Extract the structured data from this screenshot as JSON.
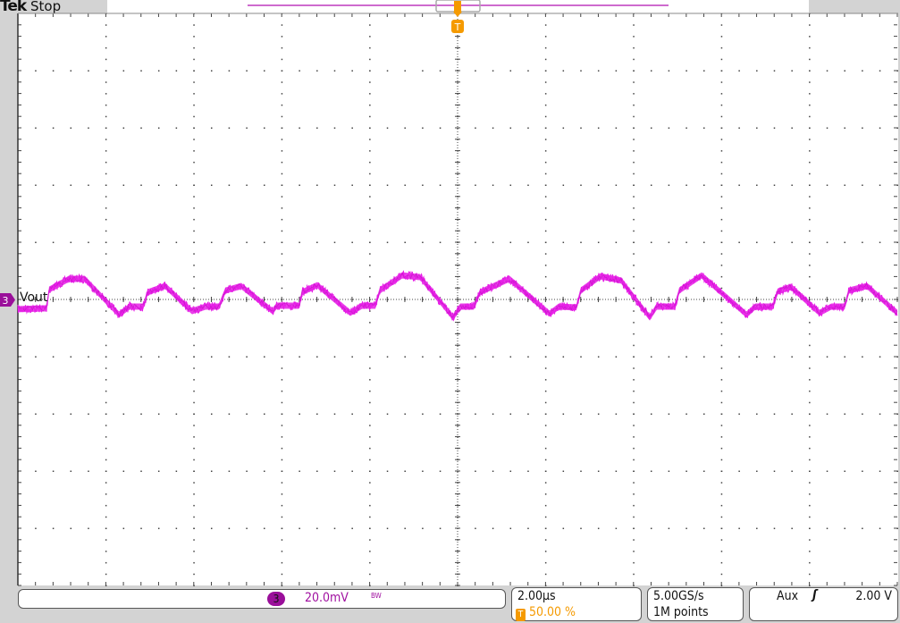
{
  "header": {
    "brand": "Tek",
    "status": "Stop"
  },
  "colors": {
    "trace": "#e61ee6",
    "channel": "#a010a0",
    "trigger": "#f59a00",
    "background": "#d3d3d3",
    "grid": "#555555"
  },
  "channel": {
    "number": "3",
    "label": "Vout",
    "scale": "20.0mV",
    "bandwidth_limit_icon": "BW"
  },
  "timebase": {
    "scale": "2.00µs",
    "trigger_position_icon": "T",
    "trigger_position": "50.00 %"
  },
  "acquisition": {
    "sample_rate": "5.00GS/s",
    "record_length": "1M points"
  },
  "trigger": {
    "source": "Aux",
    "slope_icon": "rising-edge-icon",
    "slope_glyph": "ʃ",
    "level": "2.00 V",
    "marker": "T"
  },
  "chart_data": {
    "type": "line",
    "xlabel": "",
    "ylabel": "",
    "x_unit": "µs",
    "y_unit": "mV",
    "xlim": [
      -10,
      10
    ],
    "ylim": [
      -100,
      100
    ],
    "divisions": {
      "x": 10,
      "y": 10
    },
    "grid": true,
    "series": [
      {
        "x": [
          -10.0,
          -9.35,
          -9.29,
          -8.84,
          -8.48,
          -7.7,
          -7.46,
          -7.15,
          -7.05,
          -6.65,
          -6.04,
          -5.73,
          -5.43,
          -5.28,
          -4.92,
          -4.21,
          -4.11,
          -3.6,
          -3.54,
          -3.19,
          -2.44,
          -2.17,
          -1.87,
          -1.77,
          -1.26,
          -0.85,
          -0.1,
          0.06,
          0.37,
          0.51,
          1.18,
          2.09,
          2.3,
          2.7,
          2.8,
          3.25,
          3.72,
          4.37,
          4.53,
          4.94,
          5.04,
          5.55,
          6.57,
          6.77,
          7.17,
          7.28,
          7.58,
          8.23,
          8.5,
          8.8,
          8.9,
          9.31,
          10.0
        ],
        "y": [
          -3.4,
          -3.1,
          3.4,
          7.2,
          7.2,
          -5.3,
          -2.5,
          -2.5,
          2.5,
          4.7,
          -4.1,
          -2.5,
          -2.5,
          3.1,
          4.7,
          -4.1,
          -2.2,
          -2.2,
          2.5,
          5.0,
          -4.7,
          -2.2,
          -2.2,
          3.1,
          8.4,
          7.8,
          -6.3,
          -2.5,
          -2.5,
          2.5,
          7.2,
          -5.0,
          -2.5,
          -2.8,
          3.1,
          8.1,
          6.6,
          -6.3,
          -2.5,
          -2.5,
          3.1,
          8.4,
          -5.3,
          -2.5,
          -2.5,
          2.8,
          4.4,
          -4.7,
          -2.5,
          -2.5,
          3.1,
          4.7,
          -4.7
        ]
      }
    ]
  }
}
